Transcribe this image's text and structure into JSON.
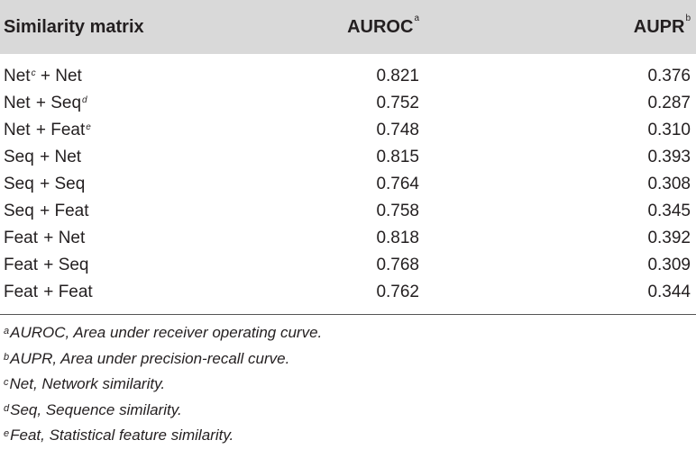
{
  "header": {
    "col1": "Similarity matrix",
    "col2": "AUROC",
    "col2_sup": "a",
    "col3": "AUPR",
    "col3_sup": "b"
  },
  "rows": [
    {
      "a": "Net",
      "a_sup": "c",
      "op": " + ",
      "b": "Net",
      "b_sup": "",
      "auroc": "0.821",
      "aupr": "0.376"
    },
    {
      "a": "Net",
      "a_sup": "",
      "op": " + ",
      "b": "Seq",
      "b_sup": "d",
      "auroc": "0.752",
      "aupr": "0.287"
    },
    {
      "a": "Net",
      "a_sup": "",
      "op": " + ",
      "b": "Feat",
      "b_sup": "e",
      "auroc": "0.748",
      "aupr": "0.310"
    },
    {
      "a": "Seq",
      "a_sup": "",
      "op": " + ",
      "b": "Net",
      "b_sup": "",
      "auroc": "0.815",
      "aupr": "0.393"
    },
    {
      "a": "Seq",
      "a_sup": "",
      "op": " + ",
      "b": "Seq",
      "b_sup": "",
      "auroc": "0.764",
      "aupr": "0.308"
    },
    {
      "a": "Seq",
      "a_sup": "",
      "op": " + ",
      "b": "Feat",
      "b_sup": "",
      "auroc": "0.758",
      "aupr": "0.345"
    },
    {
      "a": "Feat",
      "a_sup": "",
      "op": " + ",
      "b": "Net",
      "b_sup": "",
      "auroc": "0.818",
      "aupr": "0.392"
    },
    {
      "a": "Feat",
      "a_sup": "",
      "op": " + ",
      "b": "Seq",
      "b_sup": "",
      "auroc": "0.768",
      "aupr": "0.309"
    },
    {
      "a": "Feat",
      "a_sup": "",
      "op": " + ",
      "b": "Feat",
      "b_sup": "",
      "auroc": "0.762",
      "aupr": "0.344"
    }
  ],
  "footnotes": [
    {
      "mark": "a",
      "text": "AUROC, Area under receiver operating curve."
    },
    {
      "mark": "b",
      "text": "AUPR, Area under precision-recall curve."
    },
    {
      "mark": "c",
      "text": "Net, Network similarity."
    },
    {
      "mark": "d",
      "text": "Seq, Sequence similarity."
    },
    {
      "mark": "e",
      "text": "Feat, Statistical feature similarity."
    }
  ],
  "colors": {
    "header_bg": "#d9d9d9",
    "text": "#231f20",
    "rule": "#555555"
  }
}
